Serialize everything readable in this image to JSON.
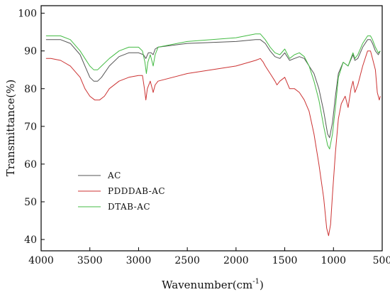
{
  "chart_data": {
    "type": "line",
    "title": "",
    "xlabel": "Wavenumber(cm",
    "xlabel_sup": "-1",
    "xlabel_close": ")",
    "ylabel": "Transmittance(%)",
    "xlim": [
      4000,
      500
    ],
    "ylim": [
      37,
      102
    ],
    "x_reversed": true,
    "grid": false,
    "legend_position": "center-left",
    "x_ticks": [
      4000,
      3500,
      3000,
      2500,
      2000,
      1500,
      1000,
      500
    ],
    "y_ticks": [
      40,
      50,
      60,
      70,
      80,
      90,
      100
    ],
    "series": [
      {
        "name": "AC",
        "color": "#555555",
        "points": [
          [
            3950,
            93
          ],
          [
            3900,
            93
          ],
          [
            3800,
            93
          ],
          [
            3700,
            92
          ],
          [
            3600,
            89
          ],
          [
            3550,
            86
          ],
          [
            3500,
            83
          ],
          [
            3460,
            82
          ],
          [
            3420,
            82
          ],
          [
            3380,
            83
          ],
          [
            3300,
            86
          ],
          [
            3200,
            88.5
          ],
          [
            3100,
            89.5
          ],
          [
            3000,
            89.5
          ],
          [
            2950,
            89
          ],
          [
            2925,
            88
          ],
          [
            2900,
            89.5
          ],
          [
            2870,
            89.5
          ],
          [
            2850,
            89
          ],
          [
            2830,
            90.5
          ],
          [
            2800,
            91
          ],
          [
            2500,
            92
          ],
          [
            2000,
            92.5
          ],
          [
            1800,
            93
          ],
          [
            1750,
            93
          ],
          [
            1700,
            92
          ],
          [
            1650,
            90
          ],
          [
            1600,
            88.5
          ],
          [
            1550,
            88
          ],
          [
            1500,
            89.5
          ],
          [
            1450,
            87.5
          ],
          [
            1400,
            88
          ],
          [
            1350,
            88.5
          ],
          [
            1300,
            88
          ],
          [
            1250,
            86
          ],
          [
            1200,
            84
          ],
          [
            1150,
            80
          ],
          [
            1100,
            74
          ],
          [
            1060,
            68
          ],
          [
            1040,
            67
          ],
          [
            1010,
            71
          ],
          [
            980,
            78
          ],
          [
            950,
            84
          ],
          [
            900,
            87
          ],
          [
            850,
            86
          ],
          [
            800,
            89
          ],
          [
            780,
            87.5
          ],
          [
            750,
            88
          ],
          [
            700,
            91
          ],
          [
            650,
            93
          ],
          [
            620,
            93
          ],
          [
            600,
            92
          ],
          [
            570,
            90
          ],
          [
            540,
            89
          ],
          [
            520,
            90
          ]
        ]
      },
      {
        "name": "PDDDAB-AC",
        "color": "#cc3333",
        "points": [
          [
            3950,
            88
          ],
          [
            3900,
            88
          ],
          [
            3800,
            87.5
          ],
          [
            3700,
            86
          ],
          [
            3600,
            83
          ],
          [
            3550,
            80
          ],
          [
            3500,
            78
          ],
          [
            3450,
            77
          ],
          [
            3400,
            77
          ],
          [
            3350,
            78
          ],
          [
            3300,
            80
          ],
          [
            3200,
            82
          ],
          [
            3100,
            83
          ],
          [
            3000,
            83.5
          ],
          [
            2960,
            83.5
          ],
          [
            2940,
            80
          ],
          [
            2925,
            77
          ],
          [
            2910,
            80
          ],
          [
            2880,
            82
          ],
          [
            2860,
            80
          ],
          [
            2850,
            79
          ],
          [
            2830,
            81
          ],
          [
            2800,
            82
          ],
          [
            2500,
            84
          ],
          [
            2000,
            86
          ],
          [
            1800,
            87.5
          ],
          [
            1750,
            88
          ],
          [
            1720,
            87
          ],
          [
            1700,
            86
          ],
          [
            1650,
            84
          ],
          [
            1600,
            82
          ],
          [
            1580,
            81
          ],
          [
            1550,
            82
          ],
          [
            1500,
            83
          ],
          [
            1450,
            80
          ],
          [
            1400,
            80
          ],
          [
            1350,
            79
          ],
          [
            1300,
            77
          ],
          [
            1250,
            74
          ],
          [
            1200,
            68
          ],
          [
            1150,
            60
          ],
          [
            1100,
            51
          ],
          [
            1070,
            43
          ],
          [
            1050,
            41
          ],
          [
            1030,
            44
          ],
          [
            1010,
            52
          ],
          [
            980,
            63
          ],
          [
            950,
            72
          ],
          [
            920,
            76
          ],
          [
            880,
            78
          ],
          [
            850,
            75
          ],
          [
            820,
            80
          ],
          [
            800,
            82
          ],
          [
            780,
            79
          ],
          [
            750,
            81
          ],
          [
            700,
            86
          ],
          [
            650,
            90
          ],
          [
            620,
            90
          ],
          [
            600,
            88
          ],
          [
            570,
            85
          ],
          [
            550,
            79
          ],
          [
            530,
            77
          ],
          [
            520,
            78
          ]
        ]
      },
      {
        "name": "DTAB-AC",
        "color": "#44bb44",
        "points": [
          [
            3950,
            94
          ],
          [
            3900,
            94
          ],
          [
            3800,
            94
          ],
          [
            3700,
            93
          ],
          [
            3600,
            90
          ],
          [
            3550,
            88
          ],
          [
            3500,
            86
          ],
          [
            3460,
            85
          ],
          [
            3420,
            85
          ],
          [
            3380,
            86
          ],
          [
            3300,
            88
          ],
          [
            3200,
            90
          ],
          [
            3100,
            91
          ],
          [
            3000,
            91
          ],
          [
            2960,
            90
          ],
          [
            2935,
            87
          ],
          [
            2920,
            84
          ],
          [
            2905,
            87
          ],
          [
            2880,
            89
          ],
          [
            2860,
            87
          ],
          [
            2850,
            86
          ],
          [
            2830,
            89
          ],
          [
            2800,
            91
          ],
          [
            2500,
            92.5
          ],
          [
            2000,
            93.5
          ],
          [
            1800,
            94.5
          ],
          [
            1750,
            94.5
          ],
          [
            1700,
            93
          ],
          [
            1650,
            91
          ],
          [
            1600,
            89.5
          ],
          [
            1550,
            89
          ],
          [
            1500,
            90.5
          ],
          [
            1450,
            88
          ],
          [
            1400,
            89
          ],
          [
            1350,
            89.5
          ],
          [
            1300,
            88.5
          ],
          [
            1250,
            86
          ],
          [
            1200,
            82
          ],
          [
            1150,
            77
          ],
          [
            1100,
            70
          ],
          [
            1060,
            65
          ],
          [
            1040,
            64
          ],
          [
            1010,
            68
          ],
          [
            980,
            75
          ],
          [
            950,
            83
          ],
          [
            900,
            87
          ],
          [
            850,
            86
          ],
          [
            800,
            89.5
          ],
          [
            780,
            88
          ],
          [
            750,
            89
          ],
          [
            700,
            92
          ],
          [
            650,
            94
          ],
          [
            620,
            94
          ],
          [
            600,
            93
          ],
          [
            570,
            91
          ],
          [
            540,
            89.5
          ],
          [
            520,
            90
          ]
        ]
      }
    ]
  }
}
